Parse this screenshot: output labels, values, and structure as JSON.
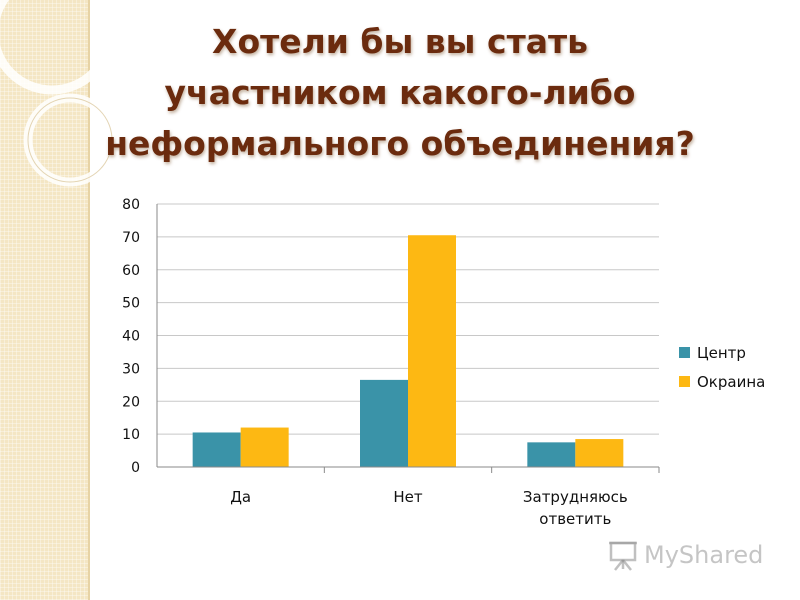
{
  "title": "Хотели бы вы стать участником какого-либо неформального объединения?",
  "watermark": "MyShared",
  "chart_data": {
    "type": "bar",
    "categories": [
      "Да",
      "Нет",
      "Затрудняюсь ответить"
    ],
    "series": [
      {
        "name": "Центр",
        "values": [
          10.5,
          26.5,
          7.5
        ],
        "color": "#3a93a8"
      },
      {
        "name": "Окраина",
        "values": [
          12,
          70.5,
          8.5
        ],
        "color": "#fdb813"
      }
    ],
    "yticks": [
      "0",
      "10",
      "20",
      "30",
      "40",
      "50",
      "60",
      "70",
      "80"
    ],
    "ylim": [
      0,
      80
    ],
    "grid": true,
    "legend_position": "right"
  }
}
